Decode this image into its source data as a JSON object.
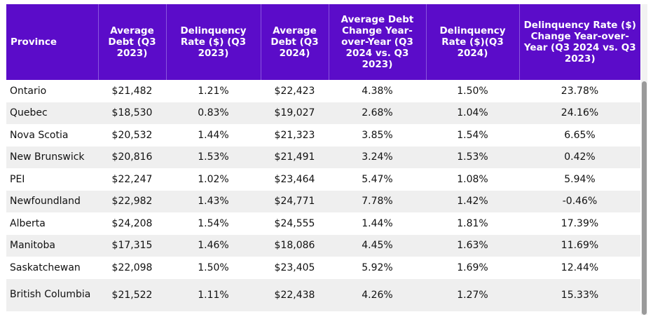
{
  "table": {
    "headers": [
      "Province",
      "Average Debt (Q3 2023)",
      "Delinquency Rate ($) (Q3 2023)",
      "Average Debt (Q3 2024)",
      "Average Debt Change Year-over-Year (Q3 2024 vs. Q3 2023)",
      "Delinquency Rate ($)(Q3 2024)",
      "Delinquency Rate ($) Change Year-over-Year (Q3 2024 vs. Q3 2023)"
    ],
    "rows": [
      [
        "Ontario",
        "$21,482",
        "1.21%",
        "$22,423",
        "4.38%",
        "1.50%",
        "23.78%"
      ],
      [
        "Quebec",
        "$18,530",
        "0.83%",
        "$19,027",
        "2.68%",
        "1.04%",
        "24.16%"
      ],
      [
        "Nova Scotia",
        "$20,532",
        "1.44%",
        "$21,323",
        "3.85%",
        "1.54%",
        "6.65%"
      ],
      [
        "New Brunswick",
        "$20,816",
        "1.53%",
        "$21,491",
        "3.24%",
        "1.53%",
        "0.42%"
      ],
      [
        "PEI",
        "$22,247",
        "1.02%",
        "$23,464",
        "5.47%",
        "1.08%",
        "5.94%"
      ],
      [
        "Newfoundland",
        "$22,982",
        "1.43%",
        "$24,771",
        "7.78%",
        "1.42%",
        "-0.46%"
      ],
      [
        "Alberta",
        "$24,208",
        "1.54%",
        "$24,555",
        "1.44%",
        "1.81%",
        "17.39%"
      ],
      [
        "Manitoba",
        "$17,315",
        "1.46%",
        "$18,086",
        "4.45%",
        "1.63%",
        "11.69%"
      ],
      [
        "Saskatchewan",
        "$22,098",
        "1.50%",
        "$23,405",
        "5.92%",
        "1.69%",
        "12.44%"
      ],
      [
        "British Columbia",
        "$21,522",
        "1.11%",
        "$22,438",
        "4.26%",
        "1.27%",
        "15.33%"
      ]
    ]
  },
  "colors": {
    "header_bg": "#5b0cc9",
    "header_text": "#ffffff",
    "stripe": "#efefef"
  }
}
